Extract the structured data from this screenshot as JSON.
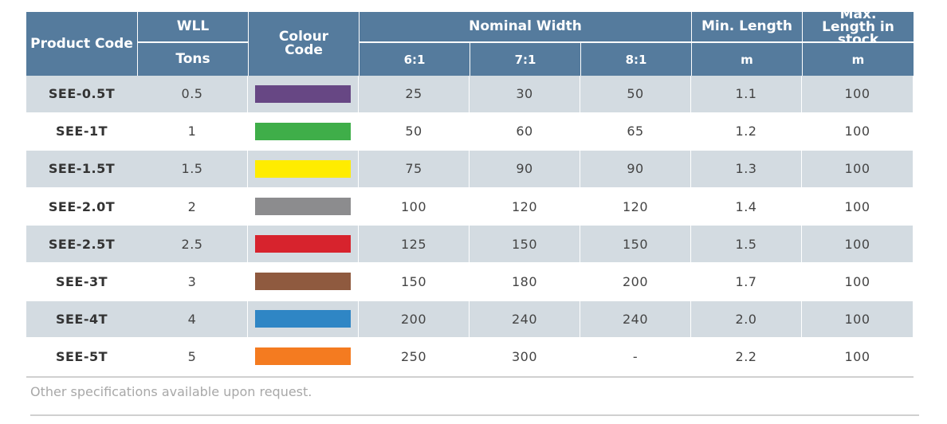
{
  "header": {
    "product_code": "Product Code",
    "wll": "WLL",
    "tons": "Tons",
    "colour_code": "Colour Code",
    "nominal_width": "Nominal Width",
    "ratios": [
      "6:1",
      "7:1",
      "8:1"
    ],
    "min_length": "Min. Length",
    "min_unit": "m",
    "max_length": "Max. Length in stock",
    "max_unit": "m"
  },
  "table": {
    "rows": [
      {
        "code": "SEE-0.5T",
        "wll": "0.5",
        "color": "#674784",
        "widths": [
          "25",
          "30",
          "50"
        ],
        "min": "1.1",
        "max": "100"
      },
      {
        "code": "SEE-1T",
        "wll": "1",
        "color": "#3fae49",
        "widths": [
          "50",
          "60",
          "65"
        ],
        "min": "1.2",
        "max": "100"
      },
      {
        "code": "SEE-1.5T",
        "wll": "1.5",
        "color": "#ffec00",
        "widths": [
          "75",
          "90",
          "90"
        ],
        "min": "1.3",
        "max": "100"
      },
      {
        "code": "SEE-2.0T",
        "wll": "2",
        "color": "#8c8c8e",
        "widths": [
          "100",
          "120",
          "120"
        ],
        "min": "1.4",
        "max": "100"
      },
      {
        "code": "SEE-2.5T",
        "wll": "2.5",
        "color": "#d7232d",
        "widths": [
          "125",
          "150",
          "150"
        ],
        "min": "1.5",
        "max": "100"
      },
      {
        "code": "SEE-3T",
        "wll": "3",
        "color": "#8f5a3f",
        "widths": [
          "150",
          "180",
          "200"
        ],
        "min": "1.7",
        "max": "100"
      },
      {
        "code": "SEE-4T",
        "wll": "4",
        "color": "#2f86c5",
        "widths": [
          "200",
          "240",
          "240"
        ],
        "min": "2.0",
        "max": "100"
      },
      {
        "code": "SEE-5T",
        "wll": "5",
        "color": "#f47b20",
        "widths": [
          "250",
          "300",
          "-"
        ],
        "min": "2.2",
        "max": "100"
      }
    ]
  },
  "footer": "Other specifications available upon request."
}
